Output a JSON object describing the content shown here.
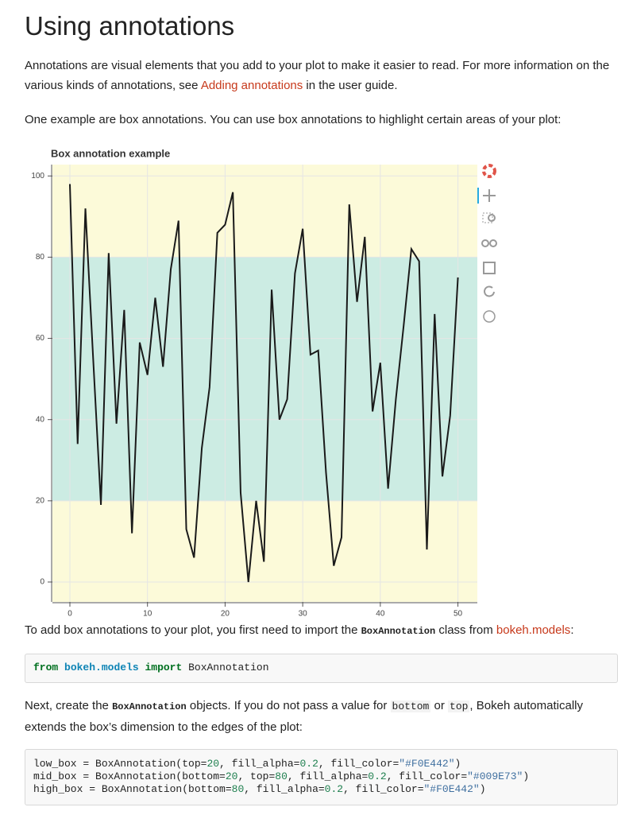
{
  "title": "Using annotations",
  "paragraphs": [
    [
      "Annotations are visual elements that you add to your plot to make it easier to read. For more information on the various kinds of annotations, see ",
      "Adding annotations",
      " in the user guide."
    ],
    [
      "One example are box annotations. You can use box annotations to highlight certain areas of your plot:"
    ],
    [
      "To add box annotations to your plot, you first need to import the ",
      "BoxAnnotation",
      " class from ",
      "bokeh.models",
      ":"
    ],
    [
      "Next, create the ",
      "BoxAnnotation",
      " objects. If you do not pass a value for ",
      "bottom",
      " or ",
      "top",
      ", Bokeh automatically extends the box’s dimension to the edges of the plot:"
    ]
  ],
  "code_1": [
    "from",
    "bokeh.models",
    "import",
    "BoxAnnotation"
  ],
  "code_2": [
    [
      "low_box = BoxAnnotation(top=",
      "20",
      ", fill_alpha=",
      "0.2",
      ", fill_color=",
      "\"#F0E442\"",
      ")"
    ],
    [
      "mid_box = BoxAnnotation(bottom=",
      "20",
      ", top=",
      "80",
      ", fill_alpha=",
      "0.2",
      ", fill_color=",
      "\"#009E73\"",
      ")"
    ],
    [
      "high_box = BoxAnnotation(bottom=",
      "80",
      ", fill_alpha=",
      "0.2",
      ", fill_color=",
      "\"#F0E442\"",
      ")"
    ]
  ],
  "chart_data": {
    "type": "line",
    "title": "Box annotation example",
    "x": [
      0,
      1,
      2,
      3,
      4,
      5,
      6,
      7,
      8,
      9,
      10,
      11,
      12,
      13,
      14,
      15,
      16,
      17,
      18,
      19,
      20,
      21,
      22,
      23,
      24,
      25,
      26,
      27,
      28,
      29,
      30,
      31,
      32,
      33,
      34,
      35,
      36,
      37,
      38,
      39,
      40,
      41,
      42,
      43,
      44,
      45,
      46,
      47,
      48,
      49,
      50
    ],
    "values": [
      98,
      34,
      92,
      55,
      19,
      81,
      39,
      67,
      12,
      59,
      51,
      70,
      53,
      77,
      89,
      13,
      6,
      33,
      48,
      86,
      88,
      96,
      22,
      0,
      20,
      5,
      72,
      40,
      45,
      76,
      87,
      56,
      57,
      27,
      4,
      11,
      93,
      69,
      85,
      42,
      54,
      23,
      45,
      63,
      82,
      79,
      8,
      66,
      26,
      41,
      75
    ],
    "color": "#1a1a1a",
    "boxes": [
      {
        "top": 20,
        "fill_alpha": 0.2,
        "fill_color": "#F0E442"
      },
      {
        "bottom": 20,
        "top": 80,
        "fill_alpha": 0.2,
        "fill_color": "#009E73"
      },
      {
        "bottom": 80,
        "fill_alpha": 0.2,
        "fill_color": "#F0E442"
      }
    ],
    "xlim": [
      -2.25,
      52.5
    ],
    "ylim": [
      -4.9,
      102.8
    ],
    "xticks": [
      0,
      10,
      20,
      30,
      40,
      50
    ],
    "yticks": [
      0,
      20,
      40,
      60,
      80,
      100
    ],
    "grid": true
  }
}
